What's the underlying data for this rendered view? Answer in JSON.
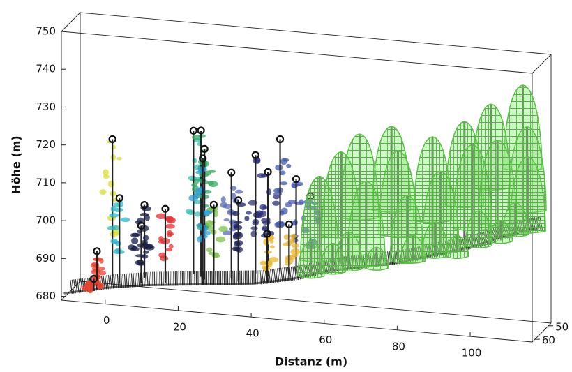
{
  "chart_data": {
    "type": "scatter3d",
    "xlabel": "Distanz (m)",
    "zlabel": "Höhe (m)",
    "xlim": [
      -12,
      117
    ],
    "ylim": [
      48,
      62
    ],
    "zlim": [
      679,
      750
    ],
    "xticks": [
      0,
      20,
      40,
      60,
      80,
      100
    ],
    "yticks": [
      50,
      60
    ],
    "zticks": [
      680,
      690,
      700,
      710,
      720,
      730,
      740,
      750
    ],
    "terrain": {
      "color": "#111111",
      "distance": [
        -12,
        0,
        10,
        20,
        30,
        40,
        50,
        60,
        70,
        80,
        90,
        100,
        110,
        117
      ],
      "elevation": [
        680,
        682.5,
        684,
        685,
        686,
        687,
        689,
        692,
        694,
        696,
        699,
        702,
        706,
        708
      ]
    },
    "trees": [
      {
        "kind": "crown",
        "distance": -0.6,
        "depth": 55,
        "top": 720,
        "color": "#d8e031"
      },
      {
        "kind": "crown",
        "distance": -3,
        "depth": 60,
        "top": 692,
        "color": "#e8412c"
      },
      {
        "kind": "crown",
        "distance": -3.5,
        "depth": 61,
        "top": 685,
        "color": "#e8412c"
      },
      {
        "kind": "crown",
        "distance": 1.7,
        "depth": 56,
        "top": 705,
        "color": "#2bb8c9"
      },
      {
        "kind": "crown",
        "distance": 7.8,
        "depth": 54,
        "top": 703,
        "color": "#1a1f4a"
      },
      {
        "kind": "crown",
        "distance": 8.4,
        "depth": 58,
        "top": 699,
        "color": "#1a1f4a"
      },
      {
        "kind": "crown",
        "distance": 15,
        "depth": 58,
        "top": 704,
        "color": "#e52f2f"
      },
      {
        "kind": "crown",
        "distance": 20.5,
        "depth": 52,
        "top": 723,
        "color": "#3bbfb3"
      },
      {
        "kind": "crown",
        "distance": 23.3,
        "depth": 54,
        "top": 724,
        "color": "#35a862"
      },
      {
        "kind": "crown",
        "distance": 25,
        "depth": 56,
        "top": 720,
        "color": "#35a862"
      },
      {
        "kind": "crown",
        "distance": 26,
        "depth": 60,
        "top": 719,
        "color": "#2f9ed6"
      },
      {
        "kind": "crown",
        "distance": 32,
        "depth": 55,
        "top": 714,
        "color": "#5b6ab8"
      },
      {
        "kind": "crown",
        "distance": 29,
        "depth": 60,
        "top": 707,
        "color": "#7dc24b"
      },
      {
        "kind": "crown",
        "distance": 35,
        "depth": 58,
        "top": 708,
        "color": "#1b1f5e"
      },
      {
        "kind": "crown",
        "distance": 37.5,
        "depth": 52,
        "top": 718,
        "color": "#2a2f78"
      },
      {
        "kind": "crown",
        "distance": 42,
        "depth": 55,
        "top": 715,
        "color": "#2a2f78"
      },
      {
        "kind": "crown",
        "distance": 43.5,
        "depth": 50,
        "top": 722,
        "color": "#3f56b0"
      },
      {
        "kind": "crown",
        "distance": 49,
        "depth": 53,
        "top": 713,
        "color": "#4a5cb8"
      },
      {
        "kind": "crown",
        "distance": 54,
        "depth": 56,
        "top": 710,
        "color": "#4a5cb8"
      },
      {
        "kind": "crown",
        "distance": 50,
        "depth": 61,
        "top": 704,
        "color": "#e8b42a"
      },
      {
        "kind": "crown",
        "distance": 44,
        "depth": 61,
        "top": 701,
        "color": "#e8b42a"
      },
      {
        "kind": "cone",
        "distance": 58,
        "depth": 60,
        "top": 717,
        "color": "#5cbf48"
      },
      {
        "kind": "cone",
        "distance": 62,
        "depth": 55,
        "top": 722,
        "color": "#5cbf48"
      },
      {
        "kind": "cone",
        "distance": 66,
        "depth": 52,
        "top": 726,
        "color": "#5cbf48"
      },
      {
        "kind": "cone",
        "distance": 70,
        "depth": 58,
        "top": 716,
        "color": "#5cbf48"
      },
      {
        "kind": "cone",
        "distance": 74,
        "depth": 50,
        "top": 728,
        "color": "#5cbf48"
      },
      {
        "kind": "cone",
        "distance": 78,
        "depth": 56,
        "top": 724,
        "color": "#5cbf48"
      },
      {
        "kind": "cone",
        "distance": 82,
        "depth": 60,
        "top": 714,
        "color": "#5cbf48"
      },
      {
        "kind": "cone",
        "distance": 86,
        "depth": 52,
        "top": 727,
        "color": "#5cbf48"
      },
      {
        "kind": "cone",
        "distance": 90,
        "depth": 57,
        "top": 720,
        "color": "#5cbf48"
      },
      {
        "kind": "cone",
        "distance": 94,
        "depth": 50,
        "top": 731,
        "color": "#5cbf48"
      },
      {
        "kind": "cone",
        "distance": 98,
        "depth": 55,
        "top": 727,
        "color": "#5cbf48"
      },
      {
        "kind": "cone",
        "distance": 102,
        "depth": 52,
        "top": 737,
        "color": "#5cbf48"
      },
      {
        "kind": "cone",
        "distance": 106,
        "depth": 58,
        "top": 730,
        "color": "#5cbf48"
      },
      {
        "kind": "cone",
        "distance": 110,
        "depth": 50,
        "top": 742,
        "color": "#5cbf48"
      },
      {
        "kind": "cone",
        "distance": 113,
        "depth": 55,
        "top": 733,
        "color": "#5cbf48"
      },
      {
        "kind": "cone",
        "distance": 115,
        "depth": 60,
        "top": 727,
        "color": "#5cbf48"
      },
      {
        "kind": "cone",
        "distance": 56,
        "depth": 61,
        "top": 700,
        "color": "#5cbf48"
      },
      {
        "kind": "cone",
        "distance": 62,
        "depth": 61,
        "top": 700,
        "color": "#5cbf48"
      },
      {
        "kind": "cone",
        "distance": 66,
        "depth": 60,
        "top": 703,
        "color": "#5cbf48"
      },
      {
        "kind": "cone",
        "distance": 74,
        "depth": 61,
        "top": 700,
        "color": "#5cbf48"
      },
      {
        "kind": "cone",
        "distance": 84,
        "depth": 61,
        "top": 704,
        "color": "#5cbf48"
      },
      {
        "kind": "cone",
        "distance": 90,
        "depth": 61,
        "top": 708,
        "color": "#5cbf48"
      },
      {
        "kind": "cone",
        "distance": 96,
        "depth": 61,
        "top": 705,
        "color": "#5cbf48"
      },
      {
        "kind": "cone",
        "distance": 102,
        "depth": 61,
        "top": 712,
        "color": "#5cbf48"
      },
      {
        "kind": "cone",
        "distance": 108,
        "depth": 61,
        "top": 710,
        "color": "#5cbf48"
      },
      {
        "kind": "cone",
        "distance": 112,
        "depth": 61,
        "top": 715,
        "color": "#5cbf48"
      }
    ]
  }
}
